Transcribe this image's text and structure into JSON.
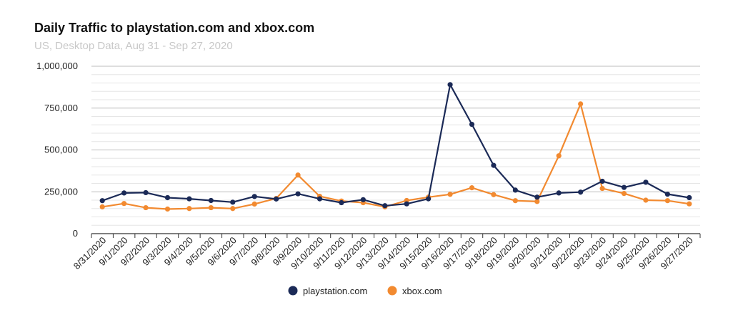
{
  "chart_data": {
    "type": "line",
    "title": "Daily Traffic to playstation.com and xbox.com",
    "subtitle": "US, Desktop Data, Aug 31 - Sep 27, 2020",
    "xlabel": "",
    "ylabel": "",
    "ylim": [
      0,
      1000000
    ],
    "yticks": [
      0,
      250000,
      500000,
      750000,
      1000000
    ],
    "ytick_labels": [
      "0",
      "250,000",
      "500,000",
      "750,000",
      "1,000,000"
    ],
    "grid": true,
    "legend_position": "bottom-center",
    "categories": [
      "8/31/2020",
      "9/1/2020",
      "9/2/2020",
      "9/3/2020",
      "9/4/2020",
      "9/5/2020",
      "9/6/2020",
      "9/7/2020",
      "9/8/2020",
      "9/9/2020",
      "9/10/2020",
      "9/11/2020",
      "9/12/2020",
      "9/13/2020",
      "9/14/2020",
      "9/15/2020",
      "9/16/2020",
      "9/17/2020",
      "9/18/2020",
      "9/19/2020",
      "9/20/2020",
      "9/21/2020",
      "9/22/2020",
      "9/23/2020",
      "9/24/2020",
      "9/25/2020",
      "9/26/2020",
      "9/27/2020"
    ],
    "series": [
      {
        "name": "playstation.com",
        "color": "#1b2a57",
        "values": [
          197000,
          243000,
          245000,
          215000,
          208000,
          198000,
          188000,
          222000,
          207000,
          238000,
          208000,
          185000,
          203000,
          167000,
          178000,
          208000,
          890000,
          653000,
          408000,
          260000,
          218000,
          243000,
          248000,
          313000,
          276000,
          307000,
          236000,
          215000
        ]
      },
      {
        "name": "xbox.com",
        "color": "#f28a30",
        "values": [
          160000,
          180000,
          155000,
          147000,
          150000,
          155000,
          150000,
          177000,
          210000,
          350000,
          223000,
          195000,
          185000,
          160000,
          198000,
          218000,
          235000,
          274000,
          233000,
          197000,
          192000,
          465000,
          775000,
          270000,
          240000,
          200000,
          197000,
          178000
        ]
      }
    ]
  }
}
